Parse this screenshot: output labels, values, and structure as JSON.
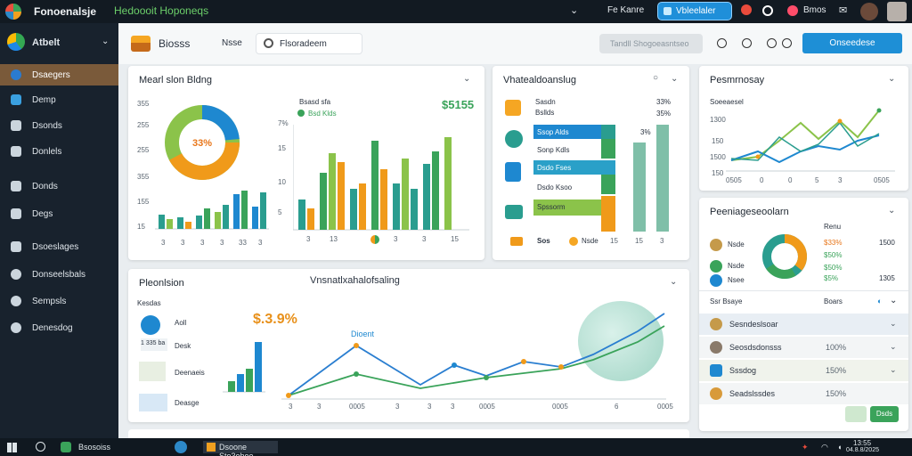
{
  "window": {
    "app_title": "Fonoenalsje",
    "green_title": "Hedoooit Hoponeqs",
    "user_label": "Fe Kanre",
    "pill_label": "Vbleelaler",
    "user_name": "Bmos"
  },
  "sidebar": {
    "brand": "Atbelt",
    "items": [
      {
        "label": "Dsaegers",
        "icon": "globe-icon"
      },
      {
        "label": "Demp",
        "icon": "bird-icon"
      },
      {
        "label": "Dsonds",
        "icon": "pencil-icon"
      },
      {
        "label": "Donlels",
        "icon": "document-icon"
      },
      {
        "label": "Donds",
        "icon": "stack-icon"
      },
      {
        "label": "Degs",
        "icon": "flag-icon"
      },
      {
        "label": "Dsoeslages",
        "icon": "layers-icon"
      },
      {
        "label": "Donseelsbals",
        "icon": "target-icon"
      },
      {
        "label": "Sempsls",
        "icon": "gauge-icon"
      },
      {
        "label": "Denesdog",
        "icon": "refresh-icon"
      }
    ]
  },
  "header": {
    "title": "Biosss",
    "link": "Nsse",
    "search_placeholder": "Flsoradeem",
    "filter_label": "Tandll Shogoeasntseo",
    "primary_label": "Onseedese"
  },
  "cards": {
    "top_left": {
      "title": "Mearl slon Bldng",
      "donut_label": "33%",
      "y_ticks": [
        "355",
        "255",
        "255",
        "355",
        "155",
        "15"
      ],
      "legend_title": "Bsasd sfa",
      "legend_item": "Bsd Klds",
      "total": "$5155",
      "right_y_ticks": [
        "7%",
        "15",
        "10",
        "5"
      ],
      "x_ticks_left": [
        "3",
        "3",
        "3",
        "3",
        "33",
        "3"
      ],
      "x_ticks_right": [
        "3",
        "13",
        "3",
        "3",
        "15"
      ]
    },
    "top_middle": {
      "title": "Vhatealdoanslug",
      "rows": [
        {
          "label": "Sasdn",
          "sub": "Bsllds"
        },
        {
          "label": "Ssop Alds",
          "sub": "Sonp Kdls"
        },
        {
          "label": "Dsdo Fses",
          "sub": "Dsdo Ksoo"
        },
        {
          "label": "Spssorm",
          "sub": ""
        }
      ],
      "pct_a": "3%",
      "pct_top": "33%",
      "pct_top2": "35%",
      "footer_left": "Sos",
      "footer_right": "Nsde",
      "x_ticks": [
        "15",
        "15",
        "15",
        "3"
      ]
    },
    "top_right": {
      "title": "Pesmrnosay",
      "subtitle": "Soeeaesel",
      "y_ticks": [
        "1300",
        "150",
        "1500",
        "150",
        "150"
      ],
      "x_ticks": [
        "0505",
        "0",
        "0",
        "5",
        "3",
        "3",
        "0505"
      ]
    },
    "middle_right": {
      "title": "Peeniageseoolarn",
      "rows": [
        {
          "label": "Nsde",
          "val": "$33%",
          "val2": "1500"
        },
        {
          "label": "Nsde",
          "val": "$50%",
          "val2": ""
        },
        {
          "label": "Nsee",
          "val": "$50%",
          "val2": "1305"
        }
      ],
      "col_a": "Renu",
      "pct": "$5%"
    },
    "bottom_left": {
      "title": "Pleonlsion",
      "center_title": "Vnsnatlxahalofsaling",
      "list_title": "Kesdas",
      "items": [
        "Aoll",
        "Desk",
        "Deenaeis",
        "Deasge"
      ],
      "stat_label": "1 335 ba",
      "big_value": "$.3.9%",
      "line_label": "Dioent",
      "x_ticks": [
        "3",
        "3",
        "8",
        "8",
        "3",
        "0005",
        "3",
        "3",
        "3",
        "0005",
        "3",
        "6",
        "0005"
      ]
    },
    "bottom_right": {
      "title": "Ssr Bsaye",
      "col_label": "Boars",
      "rows": [
        {
          "label": "Sesndeslsoar",
          "val": ""
        },
        {
          "label": "Seosdsdonsss",
          "val": "100%"
        },
        {
          "label": "Sssdog",
          "val": "150%"
        },
        {
          "label": "Seadslssdes",
          "val": "150%"
        }
      ],
      "button": "Dsds"
    }
  },
  "taskbar": {
    "search_label": "Bsosoiss",
    "app_label": "Dsoone Sto3ohoe",
    "time": "13:55",
    "date": "04.8.8/2025"
  },
  "colors": {
    "accent": "#1e8fd6",
    "green": "#3aa35a",
    "orange": "#f09a1a",
    "teal": "#2aa0a0",
    "sidebar": "#18222d"
  }
}
